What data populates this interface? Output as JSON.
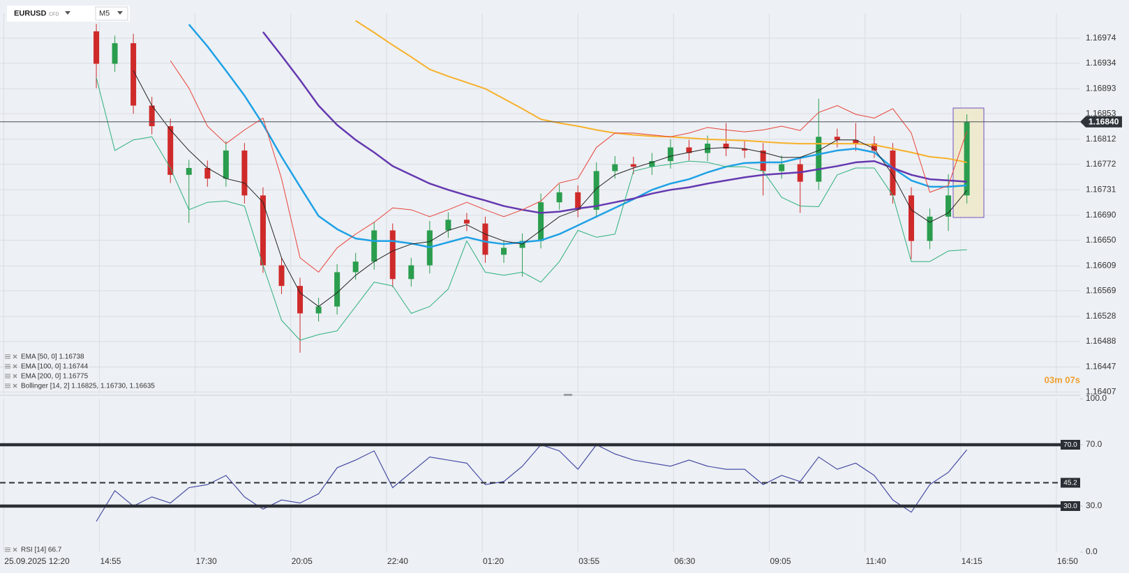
{
  "header": {
    "symbol": "EURUSD",
    "market": "CFD",
    "timeframe": "M5"
  },
  "chart_data": [
    {
      "type": "candlestick",
      "x": [
        30,
        36,
        42,
        48,
        54,
        60,
        66,
        72,
        78,
        84,
        90,
        96,
        102,
        108,
        114,
        120,
        126,
        132,
        138,
        144,
        150,
        156,
        162,
        168,
        174,
        180,
        186,
        192,
        198,
        204,
        210,
        216,
        222,
        228,
        234,
        240,
        246,
        252,
        258,
        264,
        270,
        276,
        282,
        288,
        294,
        300,
        306,
        312
      ],
      "open": [
        1.16985,
        1.16933,
        1.16966,
        1.16866,
        1.16833,
        1.16755,
        1.16766,
        1.16749,
        1.16794,
        1.16722,
        1.1661,
        1.16577,
        1.16533,
        1.16544,
        1.16599,
        1.16616,
        1.16666,
        1.16588,
        1.1661,
        1.16666,
        1.16683,
        1.16677,
        1.16627,
        1.16638,
        1.16649,
        1.16711,
        1.16727,
        1.16699,
        1.16761,
        1.16772,
        1.16768,
        1.16777,
        1.16799,
        1.1679,
        1.16805,
        1.16797,
        1.16794,
        1.16761,
        1.16772,
        1.16744,
        1.16816,
        1.16811,
        1.16805,
        1.16794,
        1.16722,
        1.16649,
        1.16688,
        1.16722
      ],
      "high": [
        1.16997,
        1.16978,
        1.16981,
        1.1688,
        1.16845,
        1.16779,
        1.16778,
        1.16809,
        1.16806,
        1.16735,
        1.16622,
        1.1659,
        1.16558,
        1.16612,
        1.1663,
        1.1668,
        1.16677,
        1.16622,
        1.16681,
        1.16695,
        1.16694,
        1.16688,
        1.1665,
        1.16661,
        1.16725,
        1.1674,
        1.16738,
        1.16775,
        1.16785,
        1.16784,
        1.1679,
        1.16812,
        1.16811,
        1.16818,
        1.16838,
        1.1681,
        1.16806,
        1.16786,
        1.16784,
        1.16877,
        1.16829,
        1.16838,
        1.16817,
        1.16806,
        1.16735,
        1.16701,
        1.16756,
        1.16852
      ],
      "low": [
        1.16894,
        1.1692,
        1.16853,
        1.1682,
        1.16742,
        1.16678,
        1.16736,
        1.16736,
        1.16709,
        1.16598,
        1.16564,
        1.1647,
        1.1652,
        1.16531,
        1.16587,
        1.16603,
        1.16575,
        1.16576,
        1.16597,
        1.16654,
        1.16665,
        1.16614,
        1.16614,
        1.16592,
        1.16637,
        1.16699,
        1.16687,
        1.16686,
        1.16749,
        1.16756,
        1.16755,
        1.16765,
        1.16778,
        1.16777,
        1.16785,
        1.16782,
        1.16722,
        1.16749,
        1.16694,
        1.16731,
        1.16799,
        1.16793,
        1.16782,
        1.16709,
        1.1662,
        1.16636,
        1.16665,
        1.16709
      ],
      "close": [
        1.16933,
        1.16966,
        1.16866,
        1.16833,
        1.16755,
        1.16766,
        1.16749,
        1.16794,
        1.16722,
        1.1661,
        1.16577,
        1.16533,
        1.16544,
        1.16599,
        1.16616,
        1.16666,
        1.16588,
        1.1661,
        1.16666,
        1.16683,
        1.16677,
        1.16627,
        1.16638,
        1.16649,
        1.16711,
        1.16727,
        1.16699,
        1.16761,
        1.16772,
        1.16768,
        1.16777,
        1.16799,
        1.1679,
        1.16805,
        1.16797,
        1.16794,
        1.16761,
        1.16772,
        1.16744,
        1.16816,
        1.16811,
        1.16805,
        1.16794,
        1.16722,
        1.16649,
        1.16688,
        1.16722,
        1.1684
      ],
      "up_color": "#2a9d4e",
      "down_color": "#cf2a2a",
      "series": [
        {
          "color": "#1ea1e6",
          "width": 2.5,
          "values": [
            null,
            null,
            null,
            null,
            null,
            1.16996,
            1.16961,
            1.16922,
            1.16882,
            1.16836,
            1.16784,
            1.16736,
            1.16689,
            1.16668,
            1.16653,
            1.16649,
            1.16649,
            1.16645,
            1.16639,
            1.16647,
            1.16655,
            1.16648,
            1.16644,
            1.16647,
            1.1665,
            1.1666,
            1.16674,
            1.16688,
            1.16702,
            1.16716,
            1.16731,
            1.16741,
            1.16748,
            1.16759,
            1.16768,
            1.16774,
            1.16775,
            1.16775,
            1.16782,
            1.16788,
            1.16794,
            1.16797,
            1.16791,
            1.16766,
            1.16746,
            1.16736,
            1.16736,
            1.16738
          ]
        },
        {
          "color": "#6438b0",
          "width": 2.5,
          "values": [
            null,
            null,
            null,
            null,
            null,
            null,
            null,
            null,
            null,
            1.16984,
            1.16946,
            1.16907,
            1.16866,
            1.16835,
            1.16811,
            1.16791,
            1.16769,
            1.16755,
            1.16741,
            1.16731,
            1.16722,
            1.16714,
            1.16705,
            1.16699,
            1.16694,
            1.16696,
            1.16701,
            1.16705,
            1.16711,
            1.16717,
            1.16725,
            1.16731,
            1.16735,
            1.16741,
            1.16746,
            1.16751,
            1.16755,
            1.16757,
            1.16759,
            1.16764,
            1.16769,
            1.16775,
            1.16777,
            1.16766,
            1.16755,
            1.16748,
            1.16746,
            1.16744
          ]
        },
        {
          "color": "#f7b12a",
          "width": 2,
          "values": [
            null,
            null,
            null,
            null,
            null,
            null,
            null,
            null,
            null,
            null,
            null,
            null,
            null,
            null,
            1.17002,
            1.16983,
            1.16963,
            1.16944,
            1.16924,
            1.16913,
            1.16903,
            1.16893,
            1.16877,
            1.16861,
            1.16844,
            1.16838,
            1.16833,
            1.16827,
            1.16822,
            1.16819,
            1.16817,
            1.16816,
            1.16814,
            1.16812,
            1.16811,
            1.1681,
            1.16808,
            1.16806,
            1.16805,
            1.16805,
            1.16805,
            1.16805,
            1.16803,
            1.16797,
            1.16791,
            1.16784,
            1.16781,
            1.16775
          ]
        },
        {
          "color": "#e8433a",
          "width": 1,
          "values": [
            null,
            null,
            null,
            null,
            1.16938,
            1.16894,
            1.16833,
            1.16805,
            1.16827,
            1.16846,
            1.16749,
            1.16622,
            1.16599,
            1.16638,
            1.1666,
            1.16679,
            1.16702,
            1.16699,
            1.16688,
            1.16699,
            1.16711,
            1.16699,
            1.16688,
            1.16699,
            1.16713,
            1.16742,
            1.16749,
            1.16799,
            1.16822,
            1.16822,
            1.16819,
            1.16816,
            1.16822,
            1.16831,
            1.16827,
            1.16824,
            1.16827,
            1.16833,
            1.16826,
            1.16855,
            1.16866,
            1.16852,
            1.16846,
            1.16861,
            1.16822,
            1.16727,
            1.16738,
            1.16825
          ]
        },
        {
          "color": "#222222",
          "width": 1,
          "values": [
            null,
            null,
            1.16922,
            1.16866,
            1.16827,
            1.16794,
            1.16766,
            1.16749,
            1.16742,
            1.16711,
            1.16622,
            1.16566,
            1.16544,
            1.16566,
            1.16594,
            1.16616,
            1.16633,
            1.16644,
            1.16648,
            1.16666,
            1.16675,
            1.1666,
            1.16649,
            1.16644,
            1.16666,
            1.16688,
            1.16699,
            1.16733,
            1.16755,
            1.16766,
            1.16775,
            1.16785,
            1.16791,
            1.16797,
            1.16799,
            1.16797,
            1.16791,
            1.16783,
            1.16783,
            1.16794,
            1.16811,
            1.16811,
            1.16797,
            1.16755,
            1.16699,
            1.16679,
            1.16694,
            1.1673
          ]
        },
        {
          "color": "#2bb07c",
          "width": 1,
          "values": [
            1.16911,
            1.16794,
            1.16811,
            1.16816,
            1.16766,
            1.16699,
            1.16711,
            1.16713,
            1.16705,
            1.1661,
            1.16522,
            1.1649,
            1.16499,
            1.16505,
            1.16544,
            1.16583,
            1.16577,
            1.16533,
            1.16544,
            1.16572,
            1.16649,
            1.16599,
            1.16594,
            1.16599,
            1.16583,
            1.16616,
            1.16666,
            1.16655,
            1.1666,
            1.16761,
            1.16768,
            1.16772,
            1.16777,
            1.16775,
            1.16768,
            1.16768,
            1.16761,
            1.16719,
            1.16705,
            1.16704,
            1.16755,
            1.16766,
            1.16766,
            1.16722,
            1.16616,
            1.16616,
            1.16633,
            1.16635
          ]
        }
      ],
      "xlim": [
        -1.2,
        348.7
      ],
      "xticks": [
        {
          "value": 0,
          "label": "25.09.2025  12:20"
        },
        {
          "value": 31,
          "label": "14:55"
        },
        {
          "value": 62,
          "label": "17:30"
        },
        {
          "value": 93,
          "label": "20:05"
        },
        {
          "value": 124,
          "label": "22:40"
        },
        {
          "value": 155,
          "label": "01:20"
        },
        {
          "value": 186,
          "label": "03:55"
        },
        {
          "value": 217,
          "label": "06:30"
        },
        {
          "value": 248,
          "label": "09:05"
        },
        {
          "value": 279,
          "label": "11:40"
        },
        {
          "value": 310,
          "label": "14:15"
        },
        {
          "value": 341,
          "label": "16:50"
        }
      ],
      "ylim": [
        1.16404,
        1.17014
      ],
      "yticks": [
        1.16974,
        1.16934,
        1.16893,
        1.16853,
        1.16812,
        1.16772,
        1.16731,
        {
          "value": 1.1669,
          "label": "1.16690"
        },
        {
          "value": 1.1665,
          "label": "1.16650"
        },
        1.16609,
        1.16569,
        1.16528,
        1.16488,
        1.16447,
        1.16407
      ],
      "grid": true,
      "last_price": {
        "value": 1.1684,
        "label": "1.16840"
      },
      "legend": [
        "EMA [50, 0] 1.16738",
        "EMA [100, 0] 1.16744",
        "EMA [200, 0] 1.16775",
        "Bollinger [14, 2] 1.16825,  1.16730,  1.16635"
      ],
      "timer": "03m 07s"
    },
    {
      "type": "line",
      "color": "#3a3f9e",
      "values": [
        20,
        40,
        30,
        36,
        32,
        42,
        44,
        50,
        36,
        28,
        34,
        32,
        38,
        55,
        60,
        66,
        42,
        52,
        62,
        60,
        58,
        44,
        46,
        56,
        70,
        66,
        54,
        70,
        64,
        60,
        58,
        56,
        60,
        56,
        54,
        54,
        44,
        50,
        46,
        62,
        54,
        58,
        50,
        34,
        26,
        44,
        52,
        66.7
      ],
      "ylim": [
        0,
        100
      ],
      "yticks": [
        {
          "value": 100,
          "label": "100.0"
        },
        {
          "value": 70,
          "label": "70.0"
        },
        {
          "value": 30,
          "label": "30.0"
        },
        {
          "value": 0,
          "label": "0.0"
        }
      ],
      "levels": [
        {
          "value": 70,
          "label": "70.0"
        },
        {
          "value": 45.2,
          "label": "45.2"
        },
        {
          "value": 30,
          "label": "30.0"
        }
      ],
      "level_styles": [
        "solid",
        "dashed",
        "solid"
      ],
      "legend": [
        "RSI [14] 66.7"
      ]
    }
  ]
}
